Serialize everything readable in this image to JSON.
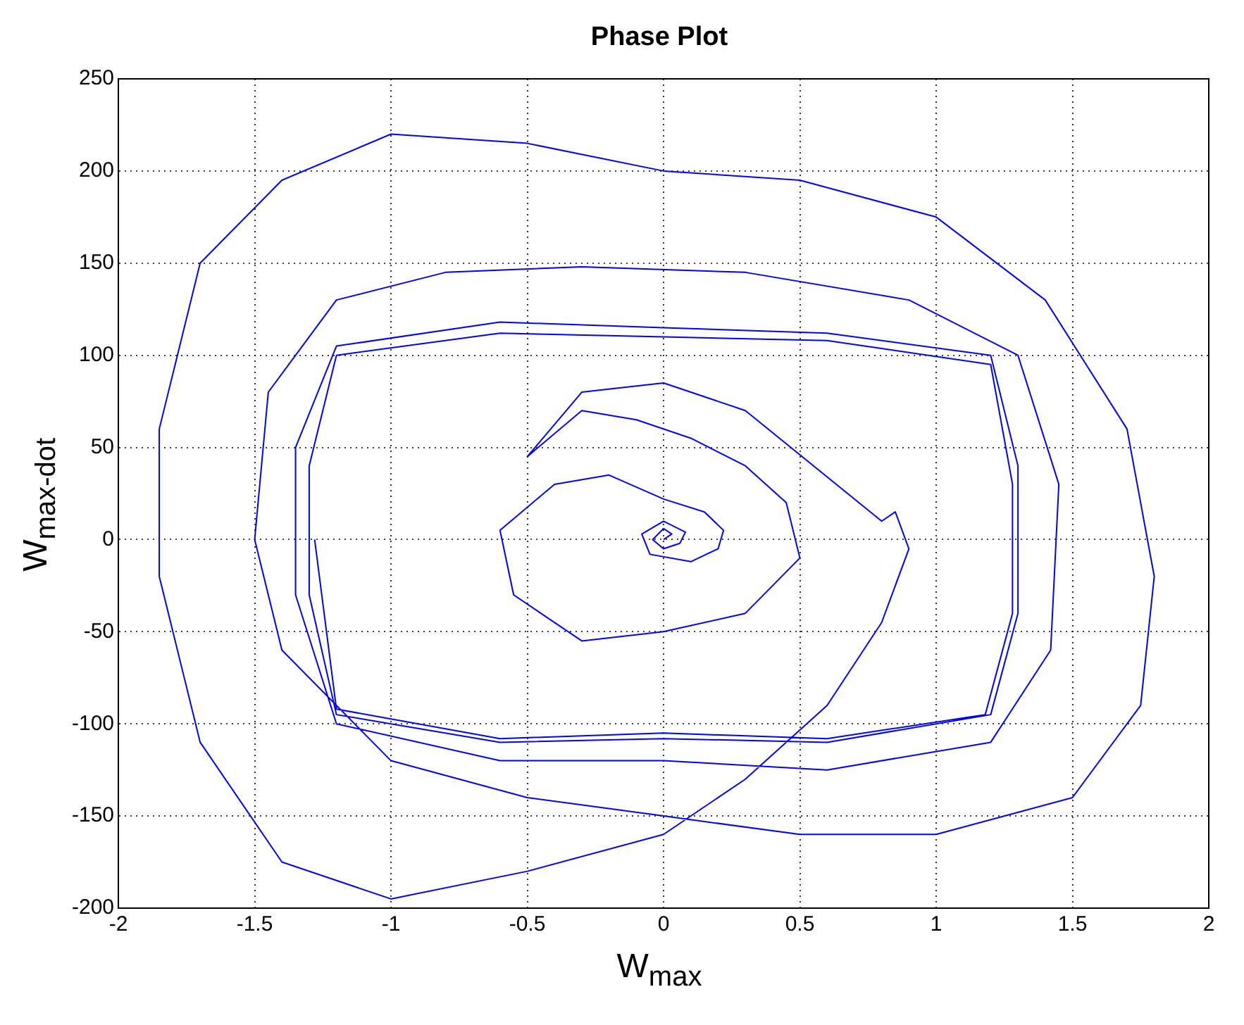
{
  "chart_data": {
    "type": "line",
    "title": "Phase Plot",
    "xlabel": "W$_{max}$",
    "ylabel": "W$_{max-dot}$",
    "xlim": [
      -2,
      2
    ],
    "xticks": [
      -2,
      -1.5,
      -1,
      -0.5,
      0,
      0.5,
      1,
      1.5,
      2
    ],
    "ylim": [
      -200,
      250
    ],
    "yticks": [
      -200,
      -150,
      -100,
      -50,
      0,
      50,
      100,
      150,
      200,
      250
    ],
    "grid": true,
    "marker": "none",
    "line_style": "solid",
    "series": [
      {
        "color": "#0000ff",
        "x": [
          0,
          0.03,
          0,
          -0.04,
          0,
          0.06,
          0.08,
          0,
          -0.08,
          -0.05,
          0.1,
          0.2,
          0.22,
          0.15,
          0,
          -0.2,
          -0.4,
          -0.6,
          -0.55,
          -0.3,
          0,
          0.3,
          0.5,
          0.45,
          0.3,
          0.1,
          -0.1,
          -0.3,
          -0.5,
          -0.3,
          0,
          0.3,
          0.55,
          0.8,
          0.85,
          0.9,
          0.8,
          0.6,
          0.3,
          0,
          -0.5,
          -1,
          -1.4,
          -1.7,
          -1.85,
          -1.85,
          -1.7,
          -1.4,
          -1,
          -0.5,
          0,
          0.5,
          1,
          1.4,
          1.7,
          1.8,
          1.75,
          1.5,
          1,
          0.5,
          0,
          -0.5,
          -1,
          -1.4,
          -1.5,
          -1.45,
          -1.2,
          -0.8,
          -0.3,
          0.3,
          0.9,
          1.3,
          1.45,
          1.42,
          1.2,
          0.6,
          0,
          -0.6,
          -1.2,
          -1.35,
          -1.35,
          -1.2,
          -0.6,
          0,
          0.6,
          1.2,
          1.3,
          1.3,
          1.2,
          0.6,
          0,
          -0.6,
          -1.2,
          -1.3,
          -1.3,
          -1.2,
          -0.6,
          0,
          0.6,
          1.2,
          1.28,
          1.28,
          1.18,
          0.6,
          0,
          -0.6,
          -1.2,
          -1.28
        ],
        "values": [
          0,
          3,
          6,
          0,
          -5,
          -2,
          4,
          10,
          3,
          -8,
          -12,
          -5,
          5,
          15,
          22,
          35,
          30,
          5,
          -30,
          -55,
          -50,
          -40,
          -10,
          20,
          40,
          55,
          65,
          70,
          45,
          80,
          85,
          70,
          40,
          10,
          15,
          -5,
          -45,
          -90,
          -130,
          -160,
          -180,
          -195,
          -175,
          -110,
          -20,
          60,
          150,
          195,
          220,
          215,
          200,
          195,
          175,
          130,
          60,
          -20,
          -90,
          -140,
          -160,
          -160,
          -150,
          -140,
          -120,
          -60,
          0,
          80,
          130,
          145,
          148,
          145,
          130,
          100,
          30,
          -60,
          -110,
          -125,
          -120,
          -120,
          -100,
          -30,
          50,
          105,
          118,
          115,
          112,
          100,
          40,
          -40,
          -95,
          -110,
          -108,
          -110,
          -95,
          -30,
          40,
          100,
          112,
          110,
          108,
          95,
          30,
          -40,
          -95,
          -108,
          -105,
          -108,
          -92,
          0
        ]
      }
    ]
  }
}
